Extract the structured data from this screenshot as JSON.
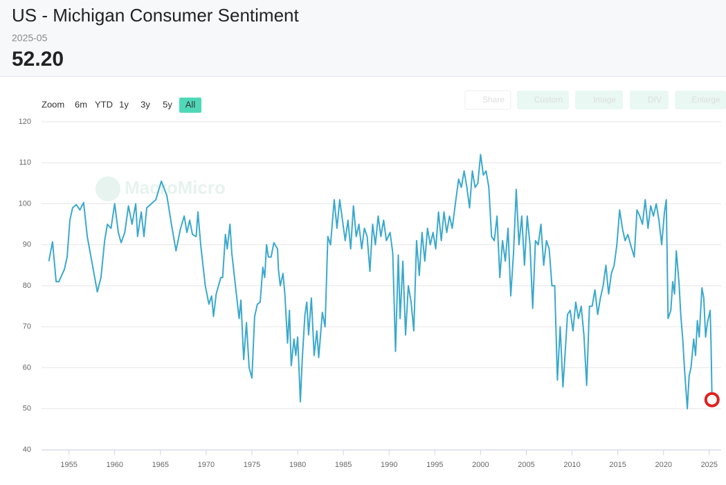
{
  "header": {
    "title": "US - Michigan Consumer Sentiment",
    "date": "2025-05",
    "value": "52.20"
  },
  "range_selector": {
    "label": "Zoom",
    "buttons": [
      "6m",
      "YTD",
      "1y",
      "3y",
      "5y",
      "All"
    ],
    "selected": 5
  },
  "toolbar": [
    "Share",
    "Custom",
    "Image",
    "DIV",
    "Enlarge"
  ],
  "watermark": "MacroMicro",
  "chart_data": {
    "type": "line",
    "color": "#3aa8cc",
    "grid": true,
    "xlim": [
      1952,
      2026.3
    ],
    "xticks": [
      1955,
      1960,
      1965,
      1970,
      1975,
      1980,
      1985,
      1990,
      1995,
      2000,
      2005,
      2010,
      2015,
      2020,
      2025
    ],
    "ylim": [
      40,
      120
    ],
    "yticks": [
      40,
      50,
      60,
      70,
      80,
      90,
      100,
      110,
      120
    ],
    "series": [
      {
        "name": "US - Michigan Consumer Sentiment",
        "color": "#3aa8cc",
        "x": [
          1952.8,
          1953.2,
          1953.6,
          1953.9,
          1954.5,
          1954.8,
          1955.1,
          1955.4,
          1955.8,
          1956.2,
          1956.6,
          1957.0,
          1958.1,
          1958.5,
          1958.9,
          1959.2,
          1959.6,
          1960.0,
          1960.4,
          1960.7,
          1961.1,
          1961.5,
          1961.9,
          1962.3,
          1962.5,
          1962.9,
          1963.2,
          1963.5,
          1964.0,
          1964.5,
          1965.1,
          1965.7,
          1966.2,
          1966.7,
          1967.2,
          1967.6,
          1967.9,
          1968.2,
          1968.5,
          1968.9,
          1969.1,
          1969.4,
          1969.9,
          1970.3,
          1970.6,
          1970.8,
          1971.1,
          1971.6,
          1971.8,
          1972.1,
          1972.3,
          1972.6,
          1972.8,
          1973.2,
          1973.6,
          1973.8,
          1974.1,
          1974.4,
          1974.7,
          1975.0,
          1975.3,
          1975.6,
          1975.9,
          1976.2,
          1976.4,
          1976.6,
          1976.8,
          1977.1,
          1977.4,
          1977.8,
          1977.9,
          1978.1,
          1978.4,
          1978.6,
          1978.9,
          1979.1,
          1979.3,
          1979.6,
          1979.8,
          1980.0,
          1980.3,
          1980.5,
          1980.8,
          1981.0,
          1981.2,
          1981.5,
          1981.8,
          1982.1,
          1982.3,
          1982.7,
          1983.0,
          1983.3,
          1983.6,
          1984.0,
          1984.3,
          1984.6,
          1984.9,
          1985.2,
          1985.5,
          1985.8,
          1986.1,
          1986.4,
          1986.7,
          1987.0,
          1987.3,
          1987.6,
          1987.9,
          1988.2,
          1988.5,
          1988.8,
          1989.1,
          1989.4,
          1989.7,
          1990.1,
          1990.4,
          1990.7,
          1991.0,
          1991.2,
          1991.5,
          1991.8,
          1992.1,
          1992.4,
          1992.7,
          1993.0,
          1993.3,
          1993.6,
          1993.9,
          1994.2,
          1994.5,
          1994.8,
          1995.1,
          1995.4,
          1995.7,
          1996.0,
          1996.3,
          1996.6,
          1996.9,
          1997.3,
          1997.6,
          1997.9,
          1998.2,
          1998.5,
          1998.8,
          1999.1,
          1999.4,
          1999.7,
          2000.0,
          2000.3,
          2000.6,
          2000.9,
          2001.2,
          2001.5,
          2001.8,
          2002.1,
          2002.4,
          2002.7,
          2003.0,
          2003.3,
          2003.6,
          2003.9,
          2004.2,
          2004.5,
          2004.8,
          2005.1,
          2005.4,
          2005.7,
          2006.0,
          2006.3,
          2006.6,
          2006.9,
          2007.2,
          2007.5,
          2007.8,
          2008.1,
          2008.4,
          2008.7,
          2009.0,
          2009.2,
          2009.5,
          2009.8,
          2010.1,
          2010.4,
          2010.7,
          2011.0,
          2011.3,
          2011.6,
          2011.9,
          2012.2,
          2012.5,
          2012.8,
          2013.1,
          2013.4,
          2013.7,
          2014.0,
          2014.3,
          2014.6,
          2014.9,
          2015.2,
          2015.5,
          2015.8,
          2016.1,
          2016.4,
          2016.8,
          2017.1,
          2017.4,
          2017.7,
          2018.0,
          2018.3,
          2018.6,
          2018.9,
          2019.2,
          2019.5,
          2019.8,
          2020.1,
          2020.3,
          2020.5,
          2020.8,
          2021.0,
          2021.2,
          2021.4,
          2021.7,
          2021.9,
          2022.1,
          2022.3,
          2022.6,
          2022.8,
          2023.0,
          2023.3,
          2023.5,
          2023.7,
          2023.9,
          2024.2,
          2024.4,
          2024.6,
          2024.8,
          2025.1,
          2025.2,
          2025.3
        ],
        "values": [
          86,
          90.7,
          81,
          81,
          84,
          87,
          96,
          99,
          99.8,
          98.5,
          100.3,
          92,
          78.5,
          82,
          91,
          95,
          94,
          100,
          93,
          90.5,
          93,
          99.5,
          95,
          100,
          92,
          98,
          92,
          99,
          100,
          101,
          105.5,
          102,
          95,
          88.5,
          94,
          97,
          93,
          96,
          92.5,
          92,
          98,
          90,
          80,
          75.5,
          77.5,
          72.5,
          78,
          82,
          82,
          92.5,
          89,
          95,
          88,
          80,
          72,
          76.5,
          62,
          71,
          60,
          57.5,
          72.5,
          75.5,
          76,
          84.5,
          82,
          90,
          87,
          87,
          90.5,
          89,
          84,
          80,
          83,
          78,
          66,
          74,
          60.5,
          67,
          63,
          67.5,
          51.7,
          62,
          73,
          76,
          68,
          77,
          63,
          69,
          62.5,
          73.5,
          70,
          92,
          90,
          101,
          94,
          101,
          96,
          91,
          96,
          89,
          99.5,
          92,
          95,
          89,
          94,
          92,
          83.5,
          95,
          90,
          97,
          92,
          96,
          91,
          93,
          88,
          64,
          87.5,
          72,
          86,
          68,
          80,
          76,
          69,
          91,
          82.5,
          93,
          86,
          94,
          90,
          93,
          89,
          98,
          91,
          98,
          93,
          97,
          94,
          101,
          106,
          104,
          108,
          104,
          99,
          108,
          104,
          105,
          112,
          107,
          108,
          104,
          92,
          91,
          97,
          82,
          91,
          86,
          94,
          77.5,
          88,
          103.5,
          90,
          97,
          85,
          97,
          90,
          74.5,
          91,
          90,
          95,
          85,
          91,
          89,
          80,
          80,
          57,
          70,
          55.3,
          62,
          73,
          74,
          69,
          76,
          72,
          75,
          68,
          55.7,
          75,
          75,
          79,
          73,
          77,
          80,
          85,
          78,
          83,
          85,
          90,
          98.5,
          94,
          91,
          92.5,
          90,
          87,
          98.5,
          97,
          95,
          101,
          94,
          99.5,
          97,
          100,
          96,
          90,
          98,
          101,
          72,
          74,
          81,
          78,
          88.5,
          80.5,
          72.5,
          67,
          59.5,
          50,
          58,
          60,
          67,
          63,
          71.5,
          67.5,
          79.5,
          77,
          67.5,
          71,
          74,
          65,
          52.2
        ]
      }
    ]
  }
}
